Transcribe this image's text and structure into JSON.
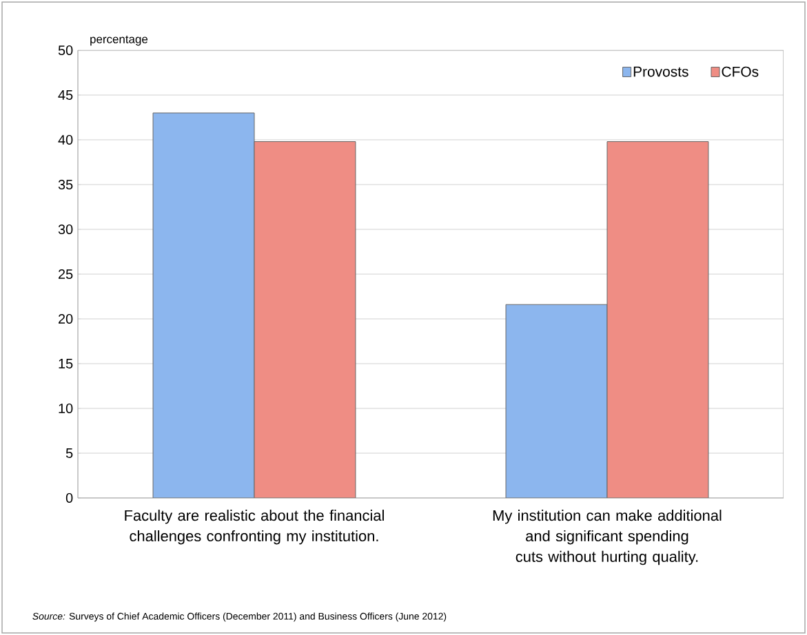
{
  "chart_data": {
    "type": "bar",
    "ylabel": "percentage",
    "categories": [
      "Faculty are realistic about the financial challenges confronting my institution.",
      "My institution can make additional and significant spending cuts without hurting quality."
    ],
    "series": [
      {
        "name": "Provosts",
        "color": "#8cb6ee",
        "values": [
          43.0,
          21.6
        ]
      },
      {
        "name": "CFOs",
        "color": "#ef8d84",
        "values": [
          39.8,
          39.8
        ]
      }
    ],
    "ylim": [
      0,
      50
    ],
    "yticks": [
      0,
      5,
      10,
      15,
      20,
      25,
      30,
      35,
      40,
      45,
      50
    ],
    "grid": "y",
    "legend": "top right",
    "annotations": [
      "*Source:* Surveys of Chief Academic Officers (December 2011) and Business Officers (June 2012)"
    ]
  }
}
